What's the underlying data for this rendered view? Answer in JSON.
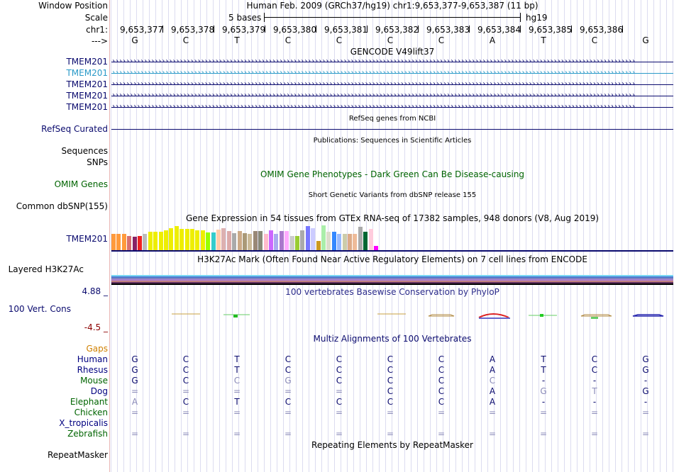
{
  "header": {
    "window_position_label": "Window Position",
    "scale_label": "Scale",
    "chrom_label": "chr1:",
    "arrow_label": "--->",
    "assembly_title": "Human Feb. 2009 (GRCh37/hg19)   chr1:9,653,377-9,653,387 (11 bp)",
    "scale_text": "5 bases",
    "db_label": "hg19",
    "positions": [
      "9,653,377",
      "9,653,378",
      "9,653,379",
      "9,653,380",
      "9,653,381",
      "9,653,382",
      "9,653,383",
      "9,653,384",
      "9,653,385",
      "9,653,386"
    ],
    "bases": [
      "G",
      "C",
      "T",
      "C",
      "C",
      "C",
      "C",
      "A",
      "T",
      "C",
      "G"
    ]
  },
  "tracks": {
    "gencode": {
      "title": "GENCODE V49lift37",
      "genes": [
        {
          "label": "TMEM201",
          "color": "#0a0a6e",
          "line": "›››››››››››››››››››››››››››››››››››››››››››››››››››››››››››››››››››››››››››››››››››››››››››››››››››››››››››››››››››››››››››››››››››››››››››››››››››"
        },
        {
          "label": "TMEM201",
          "color": "#2a9ac8",
          "line": "›››››››››››››››››››››››››››››››››››››››››››››››››››››››››››››››››››››››››››››››››››››››››››››››››››››››››››››››››››››››››››››››››››››››››››››››››››"
        },
        {
          "label": "TMEM201",
          "color": "#0a0a6e",
          "line": "›››››››››››››››››››››››››››››››››››››››››››››››››››››››››››››››››››››››››››››››››››››››››››››››››››››››››››››››››››››››››››››››››››››››››››››››››››"
        },
        {
          "label": "TMEM201",
          "color": "#0a0a6e",
          "line": "›››››››››››››››››››››››››››››››››››››››››››››››››››››››››››››››››››››››››››››››››››››››››››››››››››››››››››››››››››››››››››››››››››››››››››››››››››"
        },
        {
          "label": "TMEM201",
          "color": "#0a0a6e",
          "line": "›››››››››››››››››››››››››››››››››››››››››››››››››››››››››››››››››››››››››››››››››››››››››››››››››››››››››››››››››››››››››››››››››››››››››››››››››››"
        }
      ]
    },
    "refseq": {
      "title": "RefSeq genes from NCBI",
      "label": "RefSeq Curated"
    },
    "publications": {
      "title": "Publications: Sequences in Scientific Articles",
      "label_sequences": "Sequences",
      "label_snps": "SNPs"
    },
    "omim": {
      "title": "OMIM Gene Phenotypes - Dark Green Can Be Disease-causing",
      "label": "OMIM Genes"
    },
    "dbsnp": {
      "title": "Short Genetic Variants from dbSNP release 155",
      "label": "Common dbSNP(155)"
    },
    "gtex": {
      "title": "Gene Expression in 54 tissues from GTEx RNA-seq of 17382 samples, 948 donors (V8, Aug 2019)",
      "label": "TMEM201",
      "bars": [
        {
          "v": 0.62,
          "c": "#ff9a3c"
        },
        {
          "v": 0.62,
          "c": "#ff9a3c"
        },
        {
          "v": 0.62,
          "c": "#ff9a3c"
        },
        {
          "v": 0.55,
          "c": "#d87070"
        },
        {
          "v": 0.52,
          "c": "#882266"
        },
        {
          "v": 0.55,
          "c": "#ee2222"
        },
        {
          "v": 0.62,
          "c": "#bbbbbb"
        },
        {
          "v": 0.7,
          "c": "#eeee00"
        },
        {
          "v": 0.7,
          "c": "#eeee00"
        },
        {
          "v": 0.7,
          "c": "#eeee00"
        },
        {
          "v": 0.75,
          "c": "#eeee00"
        },
        {
          "v": 0.85,
          "c": "#eeee00"
        },
        {
          "v": 0.92,
          "c": "#eeee00"
        },
        {
          "v": 0.8,
          "c": "#eeee00"
        },
        {
          "v": 0.8,
          "c": "#eeee00"
        },
        {
          "v": 0.8,
          "c": "#eeee00"
        },
        {
          "v": 0.75,
          "c": "#eeee00"
        },
        {
          "v": 0.75,
          "c": "#eeee00"
        },
        {
          "v": 0.68,
          "c": "#99ff00"
        },
        {
          "v": 0.68,
          "c": "#33cccc"
        },
        {
          "v": 0.78,
          "c": "#ffccaa"
        },
        {
          "v": 0.85,
          "c": "#ddb0b0"
        },
        {
          "v": 0.72,
          "c": "#ddaaaa"
        },
        {
          "v": 0.65,
          "c": "#aaaaaa"
        },
        {
          "v": 0.72,
          "c": "#ccaa88"
        },
        {
          "v": 0.65,
          "c": "#aa9977"
        },
        {
          "v": 0.62,
          "c": "#ccbb99"
        },
        {
          "v": 0.72,
          "c": "#998877"
        },
        {
          "v": 0.72,
          "c": "#888877"
        },
        {
          "v": 0.62,
          "c": "#ffbbcc"
        },
        {
          "v": 0.75,
          "c": "#cc66ff"
        },
        {
          "v": 0.62,
          "c": "#aaaaee"
        },
        {
          "v": 0.72,
          "c": "#aa77cc"
        },
        {
          "v": 0.72,
          "c": "#ffaaff"
        },
        {
          "v": 0.55,
          "c": "#cccccc"
        },
        {
          "v": 0.55,
          "c": "#99cc33"
        },
        {
          "v": 0.75,
          "c": "#aaaaaa"
        },
        {
          "v": 0.92,
          "c": "#7777ff"
        },
        {
          "v": 0.85,
          "c": "#ccccff"
        },
        {
          "v": 0.35,
          "c": "#cc9922"
        },
        {
          "v": 0.95,
          "c": "#aaeeaa"
        },
        {
          "v": 0.7,
          "c": "#ddddcc"
        },
        {
          "v": 0.7,
          "c": "#3388ff"
        },
        {
          "v": 0.62,
          "c": "#99bbff"
        },
        {
          "v": 0.62,
          "c": "#ccccaa"
        },
        {
          "v": 0.62,
          "c": "#ddaa88"
        },
        {
          "v": 0.62,
          "c": "#eebb99"
        },
        {
          "v": 0.9,
          "c": "#aaaaaa"
        },
        {
          "v": 0.7,
          "c": "#006633"
        },
        {
          "v": 0.8,
          "c": "#ffccdd"
        },
        {
          "v": 0.15,
          "c": "#ff00ff"
        }
      ]
    },
    "h3k27ac": {
      "title": "H3K27Ac Mark (Often Found Near Active Regulatory Elements) on 7 cell lines from ENCODE",
      "label": "Layered H3K27Ac",
      "layers": [
        "#7bd8f4",
        "#4a7bd0",
        "#8080c0",
        "#b080d0",
        "#c08080",
        "#603060",
        "#000000"
      ]
    },
    "phylop": {
      "title": "100 vertebrates Basewise Conservation by PhyloP",
      "label": "100 Vert. Cons",
      "max": "4.88 _",
      "min": "-4.5 _"
    },
    "multiz": {
      "title": "Multiz Alignments of 100 Vertebrates",
      "gaps_label": "Gaps",
      "species": [
        {
          "name": "Human",
          "color": "#000080",
          "bases": [
            "G",
            "C",
            "T",
            "C",
            "C",
            "C",
            "C",
            "A",
            "T",
            "C",
            "G"
          ]
        },
        {
          "name": "Rhesus",
          "color": "#000080",
          "bases": [
            "G",
            "C",
            "T",
            "C",
            "C",
            "C",
            "C",
            "A",
            "T",
            "C",
            "G"
          ]
        },
        {
          "name": "Mouse",
          "color": "#006400",
          "bases": [
            "G",
            "C",
            "C",
            "G",
            "C",
            "C",
            "C",
            "C",
            "-",
            "-",
            "-"
          ]
        },
        {
          "name": "Dog",
          "color": "#000080",
          "bases": [
            "=",
            "=",
            "=",
            "=",
            "=",
            "C",
            "C",
            "A",
            "G",
            "T",
            "G"
          ]
        },
        {
          "name": "Elephant",
          "color": "#006400",
          "bases": [
            "A",
            "C",
            "T",
            "C",
            "C",
            "C",
            "C",
            "A",
            "-",
            "-",
            "-"
          ]
        },
        {
          "name": "Chicken",
          "color": "#006400",
          "bases": [
            "=",
            "=",
            "=",
            "=",
            "=",
            "=",
            "=",
            "=",
            "=",
            "=",
            "="
          ]
        },
        {
          "name": "X_tropicalis",
          "color": "#000080",
          "bases": [
            "",
            "",
            "",
            "",
            "",
            "",
            "",
            "",
            "",
            "",
            ""
          ]
        },
        {
          "name": "Zebrafish",
          "color": "#006400",
          "bases": [
            "=",
            "=",
            "=",
            "=",
            "=",
            "=",
            "=",
            "=",
            "=",
            "=",
            "="
          ]
        }
      ],
      "gray_mask": [
        [
          0,
          0,
          0,
          0,
          0,
          0,
          0,
          0,
          0,
          0,
          0
        ],
        [
          0,
          0,
          0,
          0,
          0,
          0,
          0,
          0,
          0,
          0,
          0
        ],
        [
          0,
          0,
          1,
          1,
          0,
          0,
          0,
          1,
          0,
          0,
          0
        ],
        [
          1,
          1,
          1,
          1,
          1,
          0,
          0,
          0,
          1,
          1,
          0
        ],
        [
          1,
          0,
          0,
          0,
          0,
          0,
          0,
          0,
          0,
          0,
          0
        ],
        [
          1,
          1,
          1,
          1,
          1,
          1,
          1,
          1,
          1,
          1,
          1
        ],
        [
          0,
          0,
          0,
          0,
          0,
          0,
          0,
          0,
          0,
          0,
          0
        ],
        [
          1,
          1,
          1,
          1,
          1,
          1,
          1,
          1,
          1,
          1,
          1
        ]
      ]
    },
    "repeatmasker": {
      "title": "Repeating Elements by RepeatMasker",
      "label": "RepeatMasker"
    }
  },
  "colors": {
    "navy": "#0a0a6e",
    "omim_green": "#006400",
    "gaps_orange": "#d08000",
    "phylop_red": "#8b0000"
  }
}
